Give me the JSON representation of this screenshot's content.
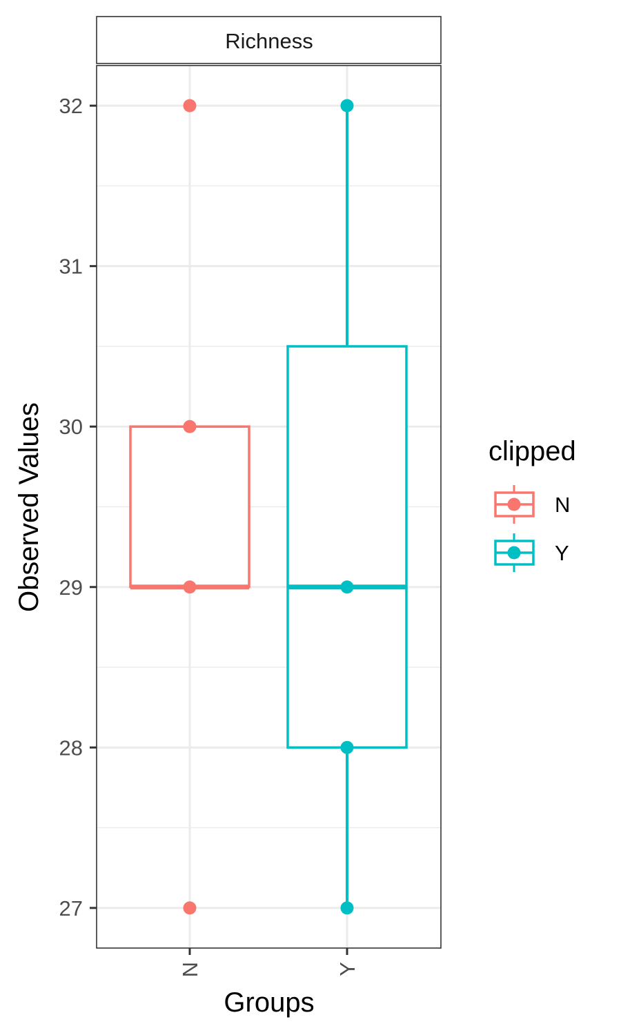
{
  "chart_data": {
    "type": "boxplot",
    "facet_label": "Richness",
    "xlabel": "Groups",
    "ylabel": "Observed Values",
    "categories": [
      "N",
      "Y"
    ],
    "ylim": [
      26.75,
      32.25
    ],
    "yticks": [
      27,
      28,
      29,
      30,
      31,
      32
    ],
    "grid": true,
    "legend": {
      "title": "clipped",
      "position": "right",
      "entries": [
        "N",
        "Y"
      ]
    },
    "series": [
      {
        "name": "N",
        "color": "#F8766D",
        "box": {
          "lower_whisker": 29,
          "q1": 29,
          "median": 29,
          "q3": 30,
          "upper_whisker": 30
        },
        "points": [
          32,
          30,
          29,
          27
        ]
      },
      {
        "name": "Y",
        "color": "#00BFC4",
        "box": {
          "lower_whisker": 27,
          "q1": 28,
          "median": 29,
          "q3": 30.5,
          "upper_whisker": 32
        },
        "points": [
          32,
          29,
          28,
          27
        ]
      }
    ]
  }
}
